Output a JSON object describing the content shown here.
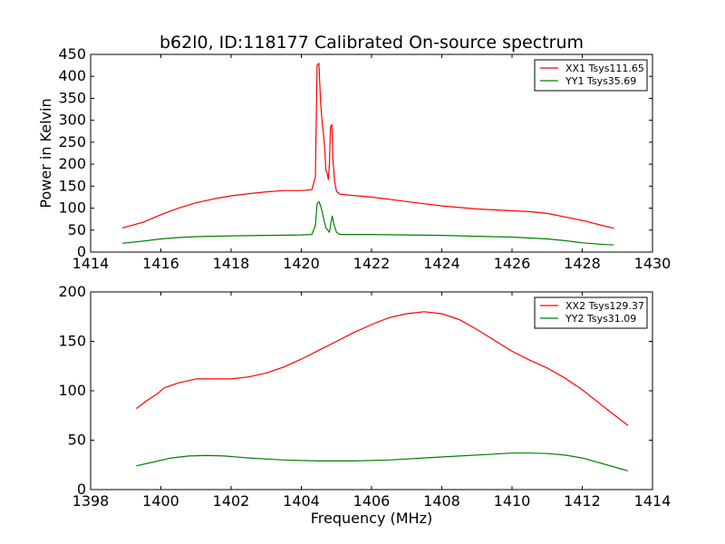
{
  "figure": {
    "title": "b62l0, ID:118177 Calibrated On-source spectrum",
    "xlabel": "Frequency (MHz)"
  },
  "chart_data": [
    {
      "type": "line",
      "title": "b62l0, ID:118177 Calibrated On-source spectrum",
      "xlabel": "",
      "ylabel": "Power in Kelvin",
      "xlim": [
        1414,
        1430
      ],
      "ylim": [
        0,
        450
      ],
      "xticks": [
        1414,
        1416,
        1418,
        1420,
        1422,
        1424,
        1426,
        1428,
        1430
      ],
      "yticks": [
        0,
        50,
        100,
        150,
        200,
        250,
        300,
        350,
        400,
        450
      ],
      "legend_position": "top-right",
      "series": [
        {
          "name": "XX1 Tsys111.65",
          "color": "#ff0000",
          "x": [
            1414.9,
            1415.5,
            1416.0,
            1416.5,
            1417.0,
            1417.5,
            1418.0,
            1418.5,
            1419.0,
            1419.5,
            1420.0,
            1420.3,
            1420.4,
            1420.45,
            1420.5,
            1420.55,
            1420.6,
            1420.63,
            1420.67,
            1420.7,
            1420.73,
            1420.77,
            1420.8,
            1420.83,
            1420.87,
            1420.9,
            1420.95,
            1421.0,
            1421.1,
            1421.3,
            1422.0,
            1423.0,
            1424.0,
            1425.0,
            1426.0,
            1426.5,
            1427.0,
            1427.5,
            1428.0,
            1428.5,
            1428.9
          ],
          "values": [
            55,
            68,
            85,
            100,
            112,
            121,
            128,
            133,
            137,
            140,
            140,
            142,
            170,
            425,
            430,
            340,
            290,
            270,
            230,
            185,
            182,
            165,
            200,
            285,
            290,
            210,
            160,
            138,
            132,
            130,
            125,
            115,
            105,
            98,
            94,
            92,
            88,
            80,
            72,
            62,
            54
          ]
        },
        {
          "name": "YY1 Tsys35.69",
          "color": "#008000",
          "x": [
            1414.9,
            1415.5,
            1416.0,
            1416.5,
            1417.0,
            1418.0,
            1419.0,
            1420.0,
            1420.3,
            1420.4,
            1420.45,
            1420.5,
            1420.55,
            1420.6,
            1420.65,
            1420.7,
            1420.75,
            1420.8,
            1420.85,
            1420.88,
            1420.92,
            1421.0,
            1421.1,
            1421.3,
            1422.0,
            1423.0,
            1424.0,
            1425.0,
            1426.0,
            1427.0,
            1427.5,
            1428.0,
            1428.5,
            1428.9
          ],
          "values": [
            20,
            25,
            30,
            33,
            35,
            37,
            38,
            39,
            40,
            60,
            110,
            115,
            105,
            90,
            70,
            55,
            50,
            45,
            70,
            82,
            65,
            45,
            40,
            40,
            40,
            39,
            38,
            36,
            34,
            30,
            26,
            21,
            18,
            16
          ]
        }
      ]
    },
    {
      "type": "line",
      "title": "",
      "xlabel": "Frequency (MHz)",
      "ylabel": "",
      "xlim": [
        1398,
        1414
      ],
      "ylim": [
        0,
        200
      ],
      "xticks": [
        1398,
        1400,
        1402,
        1404,
        1406,
        1408,
        1410,
        1412,
        1414
      ],
      "yticks": [
        0,
        50,
        100,
        150,
        200
      ],
      "legend_position": "top-right",
      "series": [
        {
          "name": "XX2 Tsys129.37",
          "color": "#ff0000",
          "x": [
            1399.3,
            1399.6,
            1399.9,
            1400.1,
            1400.5,
            1401.0,
            1401.5,
            1402.0,
            1402.5,
            1403.0,
            1403.5,
            1404.0,
            1404.5,
            1405.0,
            1405.5,
            1406.0,
            1406.5,
            1407.0,
            1407.5,
            1408.0,
            1408.5,
            1409.0,
            1409.5,
            1410.0,
            1410.5,
            1411.0,
            1411.5,
            1412.0,
            1412.5,
            1413.0,
            1413.3
          ],
          "values": [
            82,
            90,
            97,
            103,
            108,
            112,
            112,
            112,
            114,
            118,
            124,
            132,
            141,
            150,
            159,
            167,
            174,
            178,
            180,
            178,
            172,
            162,
            151,
            140,
            131,
            123,
            113,
            101,
            87,
            73,
            65
          ]
        },
        {
          "name": "YY2 Tsys31.09",
          "color": "#008000",
          "x": [
            1399.3,
            1399.8,
            1400.3,
            1400.8,
            1401.3,
            1401.8,
            1402.5,
            1403.5,
            1404.5,
            1405.5,
            1406.5,
            1407.5,
            1408.5,
            1409.5,
            1410.0,
            1410.5,
            1411.0,
            1411.5,
            1412.0,
            1412.5,
            1413.0,
            1413.3
          ],
          "values": [
            24,
            28,
            32,
            34,
            34.5,
            34,
            32,
            30,
            29,
            29,
            30,
            32,
            34,
            36,
            37,
            37,
            36.5,
            35,
            32,
            27,
            22,
            19
          ]
        }
      ]
    }
  ]
}
